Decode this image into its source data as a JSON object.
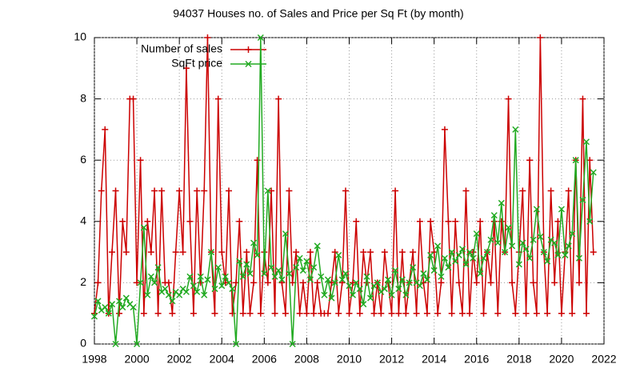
{
  "chart_data": {
    "type": "line",
    "title": "94037 Houses no. of Sales and Price per Sq Ft (by month)",
    "x": [
      1998,
      1998.17,
      1998.33,
      1998.5,
      1998.67,
      1998.83,
      1999,
      1999.17,
      1999.33,
      1999.5,
      1999.67,
      1999.83,
      2000,
      2000.17,
      2000.33,
      2000.5,
      2000.67,
      2000.83,
      2001,
      2001.17,
      2001.33,
      2001.5,
      2001.67,
      2001.83,
      2002,
      2002.17,
      2002.33,
      2002.5,
      2002.67,
      2002.83,
      2003,
      2003.17,
      2003.33,
      2003.5,
      2003.67,
      2003.83,
      2004,
      2004.17,
      2004.33,
      2004.5,
      2004.67,
      2004.83,
      2005,
      2005.17,
      2005.33,
      2005.5,
      2005.67,
      2005.83,
      2006,
      2006.17,
      2006.33,
      2006.5,
      2006.67,
      2006.83,
      2007,
      2007.17,
      2007.33,
      2007.5,
      2007.67,
      2007.83,
      2008,
      2008.17,
      2008.33,
      2008.5,
      2008.67,
      2008.83,
      2009,
      2009.17,
      2009.33,
      2009.5,
      2009.67,
      2009.83,
      2010,
      2010.17,
      2010.33,
      2010.5,
      2010.67,
      2010.83,
      2011,
      2011.17,
      2011.33,
      2011.5,
      2011.67,
      2011.83,
      2012,
      2012.17,
      2012.33,
      2012.5,
      2012.67,
      2012.83,
      2013,
      2013.17,
      2013.33,
      2013.5,
      2013.67,
      2013.83,
      2014,
      2014.17,
      2014.33,
      2014.5,
      2014.67,
      2014.83,
      2015,
      2015.17,
      2015.33,
      2015.5,
      2015.67,
      2015.83,
      2016,
      2016.17,
      2016.33,
      2016.5,
      2016.67,
      2016.83,
      2017,
      2017.17,
      2017.33,
      2017.5,
      2017.67,
      2017.83,
      2018,
      2018.17,
      2018.33,
      2018.5,
      2018.67,
      2018.83,
      2019,
      2019.17,
      2019.33,
      2019.5,
      2019.67,
      2019.83,
      2020,
      2020.17,
      2020.33,
      2020.5,
      2020.67,
      2020.83,
      2021,
      2021.17,
      2021.33,
      2021.5
    ],
    "series": [
      {
        "name": "Number of sales",
        "color": "#cc0000",
        "marker": "plus",
        "values": [
          1,
          2,
          5,
          7,
          1,
          3,
          5,
          1,
          4,
          3,
          8,
          8,
          2,
          6,
          1,
          4,
          3,
          5,
          1,
          5,
          2,
          2,
          1,
          3,
          5,
          3,
          9,
          4,
          1,
          5,
          2,
          5,
          10,
          3,
          1,
          8,
          3,
          2,
          5,
          1,
          2,
          4,
          1,
          3,
          1,
          2,
          6,
          1,
          3,
          2,
          5,
          1,
          8,
          2,
          1,
          5,
          2,
          3,
          1,
          2,
          1,
          3,
          1,
          2,
          1,
          1,
          1,
          2,
          3,
          1,
          2,
          5,
          1,
          2,
          4,
          1,
          3,
          2,
          3,
          1,
          2,
          1,
          3,
          2,
          1,
          5,
          1,
          3,
          1,
          2,
          3,
          1,
          4,
          2,
          1,
          4,
          3,
          1,
          2,
          7,
          4,
          1,
          4,
          2,
          1,
          5,
          1,
          3,
          2,
          4,
          1,
          3,
          2,
          4,
          1,
          4,
          3,
          8,
          2,
          1,
          3,
          5,
          1,
          6,
          2,
          1,
          10,
          3,
          1,
          5,
          2,
          4,
          1,
          3,
          5,
          1,
          6,
          2,
          8,
          1,
          6,
          3
        ]
      },
      {
        "name": "SqFt price",
        "color": "#22aa22",
        "marker": "cross",
        "values": [
          0.9,
          1.4,
          1.1,
          1.2,
          1.0,
          1.3,
          0.0,
          1.4,
          1.2,
          1.5,
          1.3,
          1.2,
          0.0,
          2.0,
          3.8,
          1.6,
          2.2,
          2.0,
          2.5,
          1.7,
          1.8,
          1.6,
          1.4,
          1.7,
          1.6,
          1.8,
          1.7,
          2.2,
          1.9,
          1.7,
          2.2,
          1.6,
          2.1,
          3.0,
          1.8,
          2.5,
          1.9,
          2.2,
          2.0,
          1.8,
          0.0,
          2.7,
          2.2,
          2.6,
          2.3,
          3.3,
          2.9,
          10.0,
          2.3,
          5.0,
          2.5,
          2.2,
          2.4,
          2.1,
          3.6,
          2.3,
          0.0,
          2.5,
          2.8,
          2.4,
          2.7,
          2.1,
          2.5,
          3.2,
          2.2,
          1.6,
          2.1,
          1.5,
          2.0,
          2.9,
          2.1,
          2.3,
          1.9,
          1.6,
          2.0,
          1.8,
          1.3,
          2.2,
          1.5,
          1.9,
          2.0,
          1.7,
          1.8,
          2.1,
          1.6,
          2.4,
          1.8,
          2.1,
          1.6,
          2.0,
          2.5,
          2.0,
          1.9,
          2.3,
          2.1,
          2.9,
          2.4,
          3.2,
          2.2,
          2.8,
          2.5,
          3.0,
          2.7,
          2.9,
          3.1,
          2.6,
          3.0,
          2.8,
          3.6,
          2.3,
          2.8,
          3.0,
          3.4,
          4.2,
          3.3,
          4.6,
          3.0,
          3.8,
          3.2,
          7.0,
          2.6,
          3.3,
          3.1,
          2.8,
          3.4,
          4.4,
          3.5,
          3.0,
          2.7,
          3.4,
          3.3,
          2.9,
          4.4,
          2.9,
          3.2,
          3.6,
          6.0,
          2.8,
          4.7,
          6.6,
          4.0,
          5.6
        ]
      }
    ],
    "xlim": [
      1998,
      2022
    ],
    "xticks": [
      1998,
      2000,
      2002,
      2004,
      2006,
      2008,
      2010,
      2012,
      2014,
      2016,
      2018,
      2020,
      2022
    ],
    "ylim": [
      0,
      10
    ],
    "yticks": [
      0,
      2,
      4,
      6,
      8,
      10
    ],
    "grid": true,
    "legend": "top-left"
  }
}
